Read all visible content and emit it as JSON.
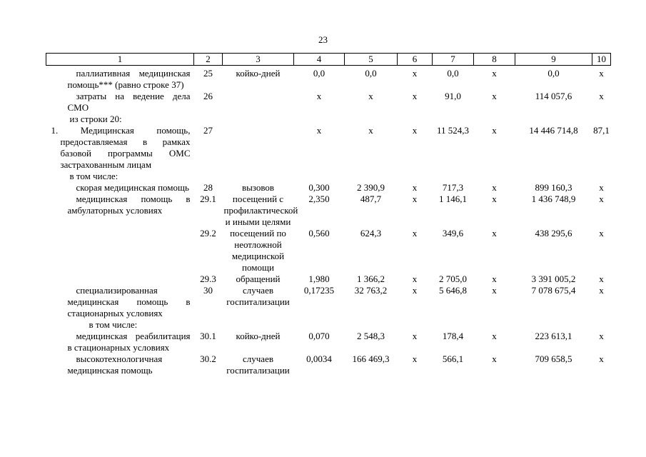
{
  "page": {
    "number": "23"
  },
  "table": {
    "columns": [
      "1",
      "2",
      "3",
      "4",
      "5",
      "6",
      "7",
      "8",
      "9",
      "10"
    ],
    "rows": [
      {
        "indent": "item",
        "cells": [
          "паллиативная медицинская помощь*** (равно строке 37)",
          "25",
          "койко-дней",
          "0,0",
          "0,0",
          "х",
          "0,0",
          "х",
          "0,0",
          "х"
        ]
      },
      {
        "indent": "item",
        "cells": [
          "затраты на ведение дела СМО",
          "26",
          "",
          "х",
          "х",
          "х",
          "91,0",
          "х",
          "114 057,6",
          "х"
        ]
      },
      {
        "indent": "label",
        "cells": [
          "из строки 20:",
          "",
          "",
          "",
          "",
          "",
          "",
          "",
          "",
          ""
        ]
      },
      {
        "indent": "main",
        "cells": [
          "1. Медицинская помощь, предоставляемая в рамках базовой программы ОМС застрахованным лицам",
          "27",
          "",
          "х",
          "х",
          "х",
          "11 524,3",
          "х",
          "14 446 714,8",
          "87,1"
        ]
      },
      {
        "indent": "label",
        "cells": [
          "в том числе:",
          "",
          "",
          "",
          "",
          "",
          "",
          "",
          "",
          ""
        ]
      },
      {
        "indent": "item",
        "cells": [
          "скорая медицинская помощь",
          "28",
          "вызовов",
          "0,300",
          "2 390,9",
          "х",
          "717,3",
          "х",
          "899 160,3",
          "х"
        ]
      },
      {
        "indent": "item",
        "cells": [
          "медицинская помощь в амбулаторных условиях",
          "29.1",
          "посещений с профилактической и иными целями",
          "2,350",
          "487,7",
          "х",
          "1 146,1",
          "х",
          "1 436 748,9",
          "х"
        ]
      },
      {
        "indent": "item",
        "cells": [
          "",
          "29.2",
          "посещений по неотложной медицинской помощи",
          "0,560",
          "624,3",
          "х",
          "349,6",
          "х",
          "438 295,6",
          "х"
        ]
      },
      {
        "indent": "item",
        "cells": [
          "",
          "29.3",
          "обращений",
          "1,980",
          "1 366,2",
          "х",
          "2 705,0",
          "х",
          "3 391 005,2",
          "х"
        ]
      },
      {
        "indent": "item",
        "cells": [
          "специализированная медицинская помощь в стационарных условиях",
          "30",
          "случаев госпитализации",
          "0,17235",
          "32 763,2",
          "х",
          "5 646,8",
          "х",
          "7 078 675,4",
          "х"
        ]
      },
      {
        "indent": "label-deep",
        "cells": [
          "в том числе:",
          "",
          "",
          "",
          "",
          "",
          "",
          "",
          "",
          ""
        ]
      },
      {
        "indent": "item",
        "cells": [
          "медицинская реабилитация в стационарных условиях",
          "30.1",
          "койко-дней",
          "0,070",
          "2 548,3",
          "х",
          "178,4",
          "х",
          "223 613,1",
          "х"
        ]
      },
      {
        "indent": "item",
        "cells": [
          "высокотехнологичная медицинская помощь",
          "30.2",
          "случаев госпитализации",
          "0,0034",
          "166 469,3",
          "х",
          "566,1",
          "х",
          "709 658,5",
          "х"
        ]
      }
    ]
  }
}
